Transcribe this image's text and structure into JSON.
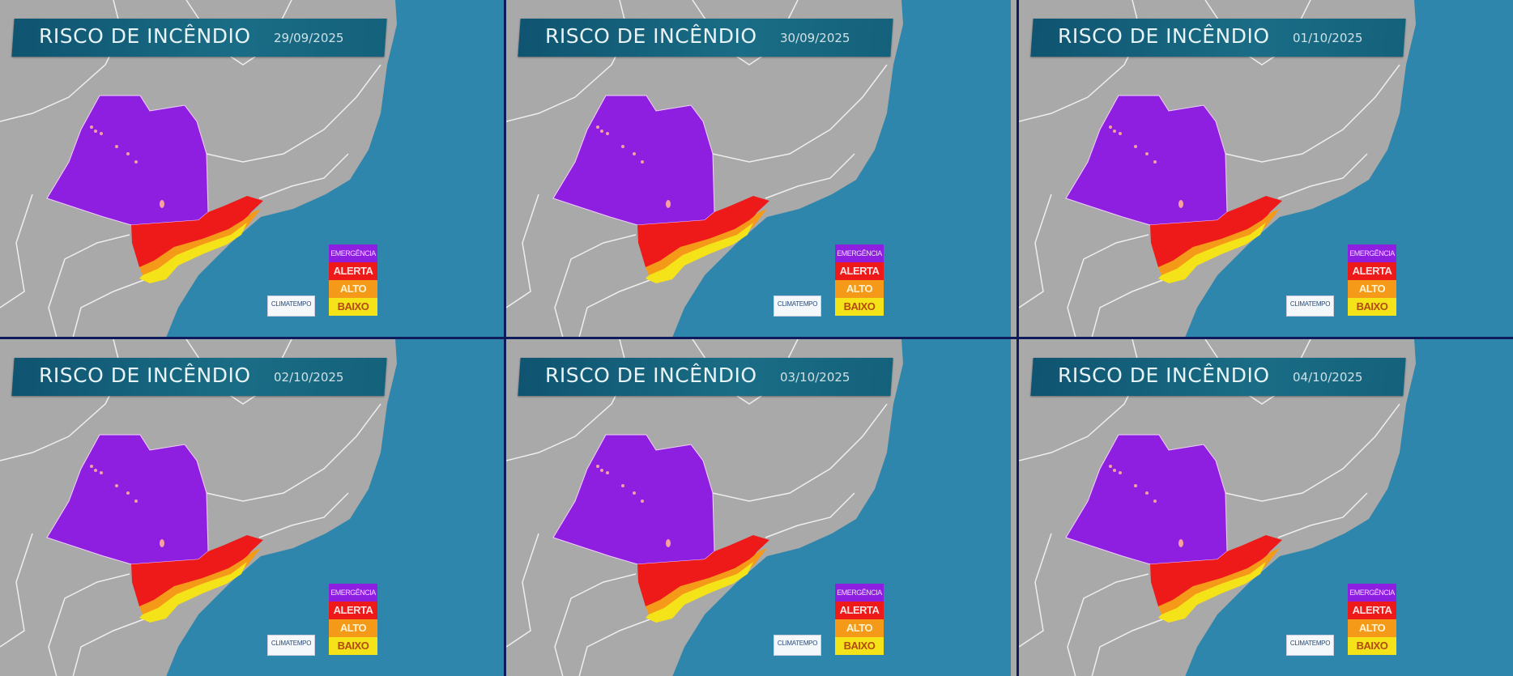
{
  "panels": [
    {
      "title": "RISCO DE INCÊNDIO",
      "date": "29/09/2025"
    },
    {
      "title": "RISCO DE INCÊNDIO",
      "date": "30/09/2025"
    },
    {
      "title": "RISCO DE INCÊNDIO",
      "date": "01/10/2025"
    },
    {
      "title": "RISCO DE INCÊNDIO",
      "date": "02/10/2025"
    },
    {
      "title": "RISCO DE INCÊNDIO",
      "date": "03/10/2025"
    },
    {
      "title": "RISCO DE INCÊNDIO",
      "date": "04/10/2025"
    }
  ],
  "legend": [
    {
      "label": "EMERGÊNCIA",
      "color": "#8f1fe0",
      "text_color": "#f0d8ff"
    },
    {
      "label": "ALERTA",
      "color": "#ee1a1a",
      "text_color": "#ffe0e0"
    },
    {
      "label": "ALTO",
      "color": "#f59a18",
      "text_color": "#fff2d0"
    },
    {
      "label": "BAIXO",
      "color": "#f5e31a",
      "text_color": "#b34a10"
    }
  ],
  "logo": "CLIMATEMPO",
  "colors": {
    "land": "#a9a9a9",
    "ocean": "#2e86ad",
    "border": "#f0f0f0",
    "title_bar": "#14617b",
    "divider": "#0f1c5c"
  }
}
